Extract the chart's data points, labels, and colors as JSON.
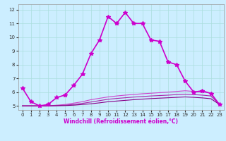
{
  "xlabel": "Windchill (Refroidissement éolien,°C)",
  "bg_color": "#cceeff",
  "line_color": "#cc00cc",
  "xlim": [
    -0.5,
    23.5
  ],
  "ylim": [
    4.7,
    12.4
  ],
  "xticks": [
    0,
    1,
    2,
    3,
    4,
    5,
    6,
    7,
    8,
    9,
    10,
    11,
    12,
    13,
    14,
    15,
    16,
    17,
    18,
    19,
    20,
    21,
    22,
    23
  ],
  "yticks": [
    5,
    6,
    7,
    8,
    9,
    10,
    11,
    12
  ],
  "grid_color": "#aadddd",
  "series": [
    {
      "x": [
        0,
        1,
        2,
        3,
        4,
        5,
        6,
        7,
        8,
        9,
        10,
        11,
        12,
        13,
        14,
        15,
        16,
        17,
        18,
        19,
        20,
        21,
        22,
        23
      ],
      "y": [
        6.3,
        5.3,
        5.0,
        5.1,
        5.6,
        5.8,
        6.5,
        7.3,
        8.8,
        9.8,
        11.5,
        11.0,
        11.8,
        11.0,
        11.0,
        9.8,
        9.7,
        8.2,
        8.0,
        6.8,
        6.0,
        6.1,
        5.9,
        5.1
      ],
      "color": "#cc00cc",
      "lw": 1.2,
      "marker": "*",
      "ms": 4
    },
    {
      "x": [
        0,
        1,
        2,
        3,
        4,
        5,
        6,
        7,
        8,
        9,
        10,
        11,
        12,
        13,
        14,
        15,
        16,
        17,
        18,
        19,
        20,
        21,
        22,
        23
      ],
      "y": [
        5.0,
        5.0,
        5.0,
        5.0,
        5.05,
        5.1,
        5.2,
        5.3,
        5.45,
        5.55,
        5.65,
        5.72,
        5.78,
        5.83,
        5.88,
        5.92,
        5.96,
        6.0,
        6.05,
        6.1,
        6.05,
        6.0,
        5.95,
        5.1
      ],
      "color": "#cc44cc",
      "lw": 0.8,
      "marker": null,
      "ms": 0
    },
    {
      "x": [
        0,
        1,
        2,
        3,
        4,
        5,
        6,
        7,
        8,
        9,
        10,
        11,
        12,
        13,
        14,
        15,
        16,
        17,
        18,
        19,
        20,
        21,
        22,
        23
      ],
      "y": [
        5.0,
        5.0,
        5.0,
        5.0,
        5.02,
        5.05,
        5.1,
        5.18,
        5.28,
        5.38,
        5.48,
        5.54,
        5.59,
        5.64,
        5.68,
        5.72,
        5.75,
        5.78,
        5.82,
        5.85,
        5.82,
        5.78,
        5.72,
        5.1
      ],
      "color": "#aa22aa",
      "lw": 0.8,
      "marker": null,
      "ms": 0
    },
    {
      "x": [
        0,
        1,
        2,
        3,
        4,
        5,
        6,
        7,
        8,
        9,
        10,
        11,
        12,
        13,
        14,
        15,
        16,
        17,
        18,
        19,
        20,
        21,
        22,
        23
      ],
      "y": [
        5.0,
        5.0,
        5.0,
        5.0,
        5.01,
        5.02,
        5.05,
        5.1,
        5.15,
        5.22,
        5.3,
        5.35,
        5.4,
        5.45,
        5.49,
        5.53,
        5.56,
        5.59,
        5.62,
        5.65,
        5.62,
        5.58,
        5.52,
        5.1
      ],
      "color": "#880088",
      "lw": 0.8,
      "marker": null,
      "ms": 0
    }
  ]
}
